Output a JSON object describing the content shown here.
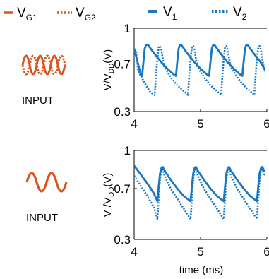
{
  "legend_inputs": {
    "items": [
      {
        "name": "V",
        "sub": "G1",
        "color": "#d9541e",
        "style": "solid"
      },
      {
        "name": "V",
        "sub": "G2",
        "color": "#d9541e",
        "style": "dotted"
      }
    ]
  },
  "input_label": "INPUT",
  "input_icon_names": [
    "overlapping-sine-waves-icon",
    "single-sine-wave-icon"
  ],
  "colors": {
    "input": "#d9541e",
    "output": "#1a78c2",
    "axis": "#000000"
  },
  "chart_data": [
    {
      "type": "line",
      "xlabel": "",
      "ylabel_main": "V/V",
      "ylabel_sub1": "DD",
      "ylabel_suffix": "(V)",
      "xlim": [
        4,
        6
      ],
      "ylim": [
        0.3,
        1
      ],
      "xticks": [
        "4",
        "5",
        "6"
      ],
      "yticks": [
        "0.3",
        "0.7",
        "1"
      ],
      "grid": false,
      "legend": "top",
      "series": [
        {
          "name": "V1",
          "label_main": "V",
          "label_sub": "1",
          "style": "solid",
          "x": [
            4.0,
            4.05,
            4.1,
            4.12,
            4.14,
            4.16,
            4.18,
            4.21,
            4.3,
            4.4,
            4.5,
            4.6,
            4.63,
            4.65,
            4.67,
            4.69,
            4.71,
            4.8,
            4.9,
            5.0,
            5.1,
            5.13,
            5.15,
            5.17,
            5.19,
            5.21,
            5.3,
            5.4,
            5.5,
            5.6,
            5.63,
            5.65,
            5.67,
            5.69,
            5.71,
            5.8,
            5.9,
            6.0
          ],
          "y": [
            0.83,
            0.72,
            0.61,
            0.6,
            0.72,
            0.83,
            0.86,
            0.86,
            0.79,
            0.72,
            0.66,
            0.61,
            0.6,
            0.72,
            0.83,
            0.86,
            0.86,
            0.79,
            0.72,
            0.66,
            0.61,
            0.6,
            0.72,
            0.83,
            0.86,
            0.86,
            0.79,
            0.72,
            0.66,
            0.61,
            0.6,
            0.72,
            0.83,
            0.86,
            0.86,
            0.79,
            0.72,
            0.62
          ]
        },
        {
          "name": "V2",
          "label_main": "V",
          "label_sub": "2",
          "style": "dotted",
          "x": [
            4.0,
            4.03,
            4.06,
            4.1,
            4.15,
            4.2,
            4.25,
            4.31,
            4.33,
            4.35,
            4.37,
            4.39,
            4.41,
            4.45,
            4.55,
            4.65,
            4.75,
            4.81,
            4.83,
            4.85,
            4.87,
            4.89,
            4.91,
            4.95,
            5.05,
            5.15,
            5.25,
            5.31,
            5.33,
            5.35,
            5.37,
            5.39,
            5.41,
            5.45,
            5.55,
            5.65,
            5.75,
            5.81,
            5.83,
            5.85,
            5.87,
            5.89,
            5.91,
            5.95,
            6.0
          ],
          "y": [
            0.82,
            0.8,
            0.64,
            0.6,
            0.55,
            0.5,
            0.46,
            0.44,
            0.6,
            0.75,
            0.84,
            0.85,
            0.82,
            0.68,
            0.59,
            0.52,
            0.47,
            0.44,
            0.6,
            0.75,
            0.84,
            0.85,
            0.82,
            0.68,
            0.59,
            0.52,
            0.47,
            0.44,
            0.6,
            0.75,
            0.84,
            0.85,
            0.82,
            0.68,
            0.59,
            0.52,
            0.47,
            0.44,
            0.6,
            0.75,
            0.84,
            0.85,
            0.82,
            0.68,
            0.6
          ]
        }
      ]
    },
    {
      "type": "line",
      "xlabel": "time (ms)",
      "ylabel_main": "V /V",
      "ylabel_sub1": "DD",
      "ylabel_suffix": "(V)",
      "xlim": [
        4,
        6
      ],
      "ylim": [
        0.3,
        1
      ],
      "xticks": [
        "4",
        "5",
        "6"
      ],
      "yticks": [
        "0.3",
        "0.7",
        "1"
      ],
      "grid": false,
      "series": [
        {
          "name": "V1",
          "style": "solid",
          "x": [
            4.0,
            4.1,
            4.2,
            4.3,
            4.35,
            4.37,
            4.39,
            4.41,
            4.43,
            4.46,
            4.55,
            4.65,
            4.75,
            4.85,
            4.87,
            4.89,
            4.91,
            4.93,
            4.96,
            5.05,
            5.15,
            5.25,
            5.35,
            5.37,
            5.39,
            5.41,
            5.43,
            5.46,
            5.55,
            5.65,
            5.75,
            5.85,
            5.87,
            5.89,
            5.91,
            5.93,
            5.96,
            6.0
          ],
          "y": [
            0.88,
            0.81,
            0.74,
            0.66,
            0.6,
            0.72,
            0.82,
            0.86,
            0.87,
            0.84,
            0.77,
            0.7,
            0.64,
            0.6,
            0.72,
            0.82,
            0.86,
            0.87,
            0.84,
            0.77,
            0.7,
            0.64,
            0.6,
            0.72,
            0.82,
            0.86,
            0.87,
            0.84,
            0.77,
            0.7,
            0.64,
            0.6,
            0.72,
            0.82,
            0.86,
            0.87,
            0.84,
            0.85
          ]
        },
        {
          "name": "V2",
          "style": "dotted",
          "x": [
            4.0,
            4.1,
            4.2,
            4.3,
            4.35,
            4.37,
            4.39,
            4.41,
            4.43,
            4.46,
            4.55,
            4.65,
            4.75,
            4.85,
            4.87,
            4.89,
            4.91,
            4.93,
            4.96,
            5.05,
            5.15,
            5.25,
            5.35,
            5.37,
            5.39,
            5.41,
            5.43,
            5.46,
            5.55,
            5.65,
            5.75,
            5.85,
            5.87,
            5.89,
            5.91,
            5.93,
            5.96,
            6.0
          ],
          "y": [
            0.8,
            0.72,
            0.64,
            0.55,
            0.46,
            0.62,
            0.78,
            0.84,
            0.85,
            0.8,
            0.7,
            0.62,
            0.54,
            0.46,
            0.62,
            0.78,
            0.84,
            0.85,
            0.8,
            0.7,
            0.62,
            0.54,
            0.46,
            0.62,
            0.78,
            0.84,
            0.85,
            0.8,
            0.7,
            0.62,
            0.54,
            0.46,
            0.62,
            0.78,
            0.84,
            0.85,
            0.8,
            0.82
          ]
        }
      ]
    }
  ]
}
